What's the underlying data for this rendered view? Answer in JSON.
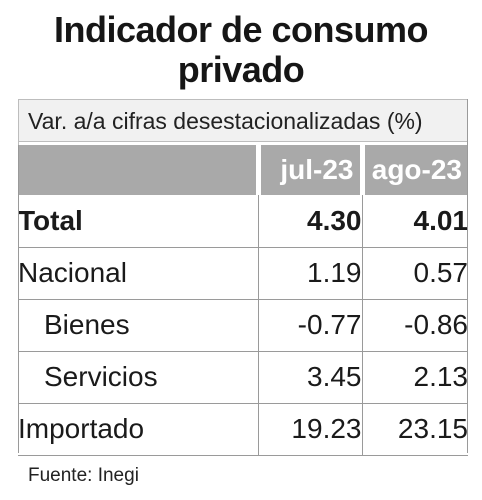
{
  "title_line1": "Indicador de consumo",
  "title_line2": "privado",
  "subtitle": "Var. a/a  cifras desestacionalizadas (%)",
  "columns": [
    "",
    "jul-23",
    "ago-23"
  ],
  "rows": [
    {
      "label": "Total",
      "jul": "4.30",
      "ago": "4.01"
    },
    {
      "label": "Nacional",
      "jul": "1.19",
      "ago": "0.57"
    },
    {
      "label": "Bienes",
      "jul": "-0.77",
      "ago": "-0.86"
    },
    {
      "label": "Servicios",
      "jul": "3.45",
      "ago": "2.13"
    },
    {
      "label": "Importado",
      "jul": "19.23",
      "ago": "23.15"
    }
  ],
  "source": "Fuente: Inegi",
  "colors": {
    "header_bg": "#a9a9a9",
    "subtitle_bg": "#f1f1f1",
    "grid": "#9a9a9a"
  }
}
